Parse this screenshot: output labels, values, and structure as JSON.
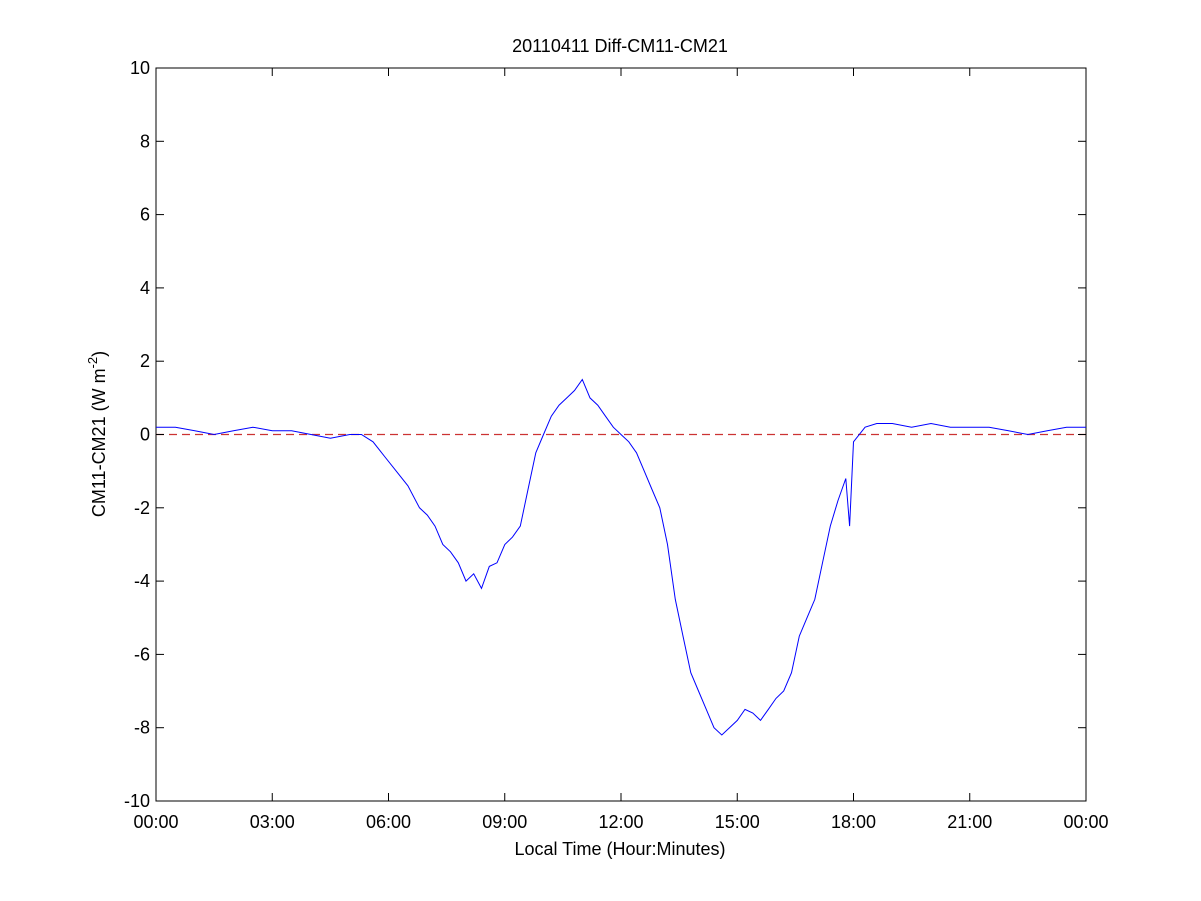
{
  "chart_data": {
    "type": "line",
    "title": "20110411 Diff-CM11-CM21",
    "xlabel": "Local Time (Hour:Minutes)",
    "ylabel": "CM11-CM21 (W m",
    "ylabel_superscript": "-2",
    "ylabel_suffix": ")",
    "xlim": [
      0,
      24
    ],
    "ylim": [
      -10,
      10
    ],
    "x_ticks": [
      0,
      3,
      6,
      9,
      12,
      15,
      18,
      21,
      24
    ],
    "x_tick_labels": [
      "00:00",
      "03:00",
      "06:00",
      "09:00",
      "12:00",
      "15:00",
      "18:00",
      "21:00",
      "00:00"
    ],
    "y_ticks": [
      -10,
      -8,
      -6,
      -4,
      -2,
      0,
      2,
      4,
      6,
      8,
      10
    ],
    "y_tick_labels": [
      "-10",
      "-8",
      "-6",
      "-4",
      "-2",
      "0",
      "2",
      "4",
      "6",
      "8",
      "10"
    ],
    "grid": false,
    "reference_line": {
      "y": 0,
      "color": "#cc3333",
      "style": "dashed"
    },
    "series": [
      {
        "color": "#0000ff",
        "x": [
          0.0,
          0.5,
          1.0,
          1.5,
          2.0,
          2.5,
          3.0,
          3.5,
          4.0,
          4.5,
          5.0,
          5.3,
          5.6,
          5.9,
          6.2,
          6.5,
          6.8,
          7.0,
          7.2,
          7.4,
          7.6,
          7.8,
          8.0,
          8.2,
          8.4,
          8.6,
          8.8,
          9.0,
          9.2,
          9.4,
          9.6,
          9.8,
          10.0,
          10.2,
          10.4,
          10.6,
          10.8,
          11.0,
          11.2,
          11.4,
          11.6,
          11.8,
          12.0,
          12.2,
          12.4,
          12.6,
          12.8,
          13.0,
          13.2,
          13.4,
          13.6,
          13.8,
          14.0,
          14.2,
          14.4,
          14.6,
          14.8,
          15.0,
          15.2,
          15.4,
          15.6,
          15.8,
          16.0,
          16.2,
          16.4,
          16.6,
          16.8,
          17.0,
          17.2,
          17.4,
          17.6,
          17.8,
          17.9,
          18.0,
          18.3,
          18.6,
          19.0,
          19.5,
          20.0,
          20.5,
          21.0,
          21.5,
          22.0,
          22.5,
          23.0,
          23.5,
          24.0
        ],
        "y": [
          0.2,
          0.2,
          0.1,
          0.0,
          0.1,
          0.2,
          0.1,
          0.1,
          0.0,
          -0.1,
          0.0,
          0.0,
          -0.2,
          -0.6,
          -1.0,
          -1.4,
          -2.0,
          -2.2,
          -2.5,
          -3.0,
          -3.2,
          -3.5,
          -4.0,
          -3.8,
          -4.2,
          -3.6,
          -3.5,
          -3.0,
          -2.8,
          -2.5,
          -1.5,
          -0.5,
          0.0,
          0.5,
          0.8,
          1.0,
          1.2,
          1.5,
          1.0,
          0.8,
          0.5,
          0.2,
          0.0,
          -0.2,
          -0.5,
          -1.0,
          -1.5,
          -2.0,
          -3.0,
          -4.5,
          -5.5,
          -6.5,
          -7.0,
          -7.5,
          -8.0,
          -8.2,
          -8.0,
          -7.8,
          -7.5,
          -7.6,
          -7.8,
          -7.5,
          -7.2,
          -7.0,
          -6.5,
          -5.5,
          -5.0,
          -4.5,
          -3.5,
          -2.5,
          -1.8,
          -1.2,
          -2.5,
          -0.2,
          0.2,
          0.3,
          0.3,
          0.2,
          0.3,
          0.2,
          0.2,
          0.2,
          0.1,
          0.0,
          0.1,
          0.2,
          0.2
        ]
      }
    ]
  }
}
